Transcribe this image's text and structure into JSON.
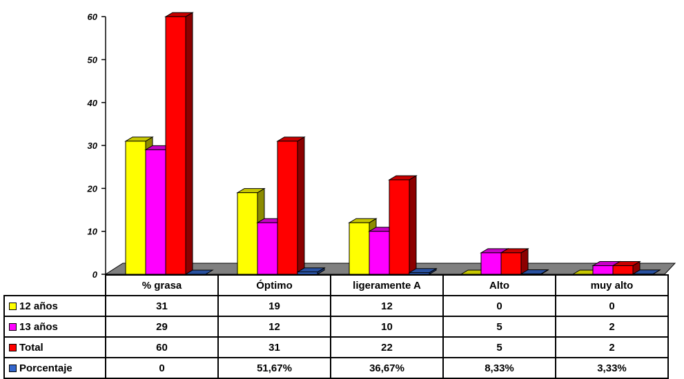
{
  "chart_data": {
    "type": "bar",
    "categories": [
      "% grasa",
      "Óptimo",
      "ligeramente A",
      "Alto",
      "muy alto"
    ],
    "series": [
      {
        "name": "12 años",
        "values": [
          31,
          19,
          12,
          0,
          0
        ],
        "color": "#ffff00",
        "labels": [
          "31",
          "19",
          "12",
          "0",
          "0"
        ]
      },
      {
        "name": "13 años",
        "values": [
          29,
          12,
          10,
          5,
          2
        ],
        "color": "#ff00ff",
        "labels": [
          "29",
          "12",
          "10",
          "5",
          "2"
        ]
      },
      {
        "name": "Total",
        "values": [
          60,
          31,
          22,
          5,
          2
        ],
        "color": "#ff0000",
        "labels": [
          "60",
          "31",
          "22",
          "5",
          "2"
        ]
      },
      {
        "name": "Porcentaje",
        "values": [
          0,
          0.5167,
          0.3667,
          0.0833,
          0.0333
        ],
        "color": "#3366cc",
        "labels": [
          "0",
          "51,67%",
          "36,67%",
          "8,33%",
          "3,33%"
        ]
      }
    ],
    "yticks": [
      "0",
      "10",
      "20",
      "30",
      "40",
      "50",
      "60"
    ],
    "ylim": [
      0,
      60
    ],
    "grid": false,
    "legend": "data table keys (left of table rows)",
    "three_d": true
  }
}
